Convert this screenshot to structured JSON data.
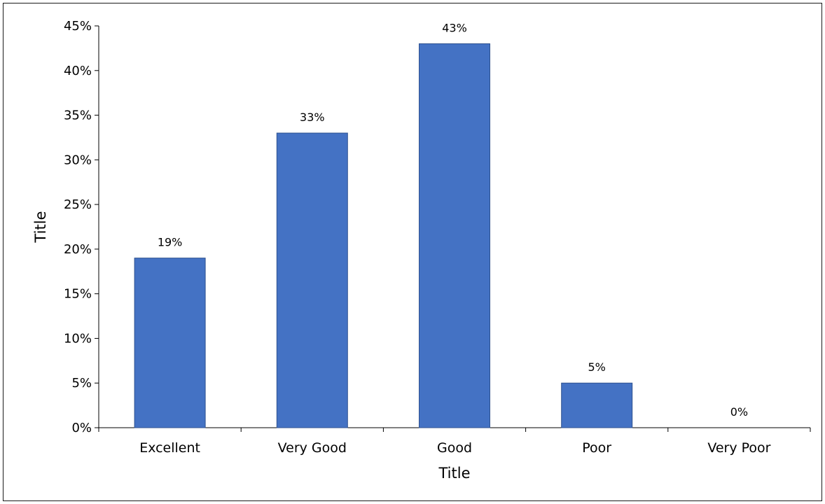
{
  "chart_data": {
    "type": "bar",
    "categories": [
      "Excellent",
      "Very Good",
      "Good",
      "Poor",
      "Very Poor"
    ],
    "values": [
      19,
      33,
      43,
      5,
      0
    ],
    "data_labels": [
      "19%",
      "33%",
      "43%",
      "5%",
      "0%"
    ],
    "xlabel": "Title",
    "ylabel": "Title",
    "ylim": [
      0,
      45
    ],
    "yticks": [
      "0%",
      "5%",
      "10%",
      "15%",
      "20%",
      "25%",
      "30%",
      "35%",
      "40%",
      "45%"
    ],
    "grid": false,
    "legend": "none",
    "bar_color": "#4472C4",
    "bar_edge_color": "#2F528F"
  }
}
